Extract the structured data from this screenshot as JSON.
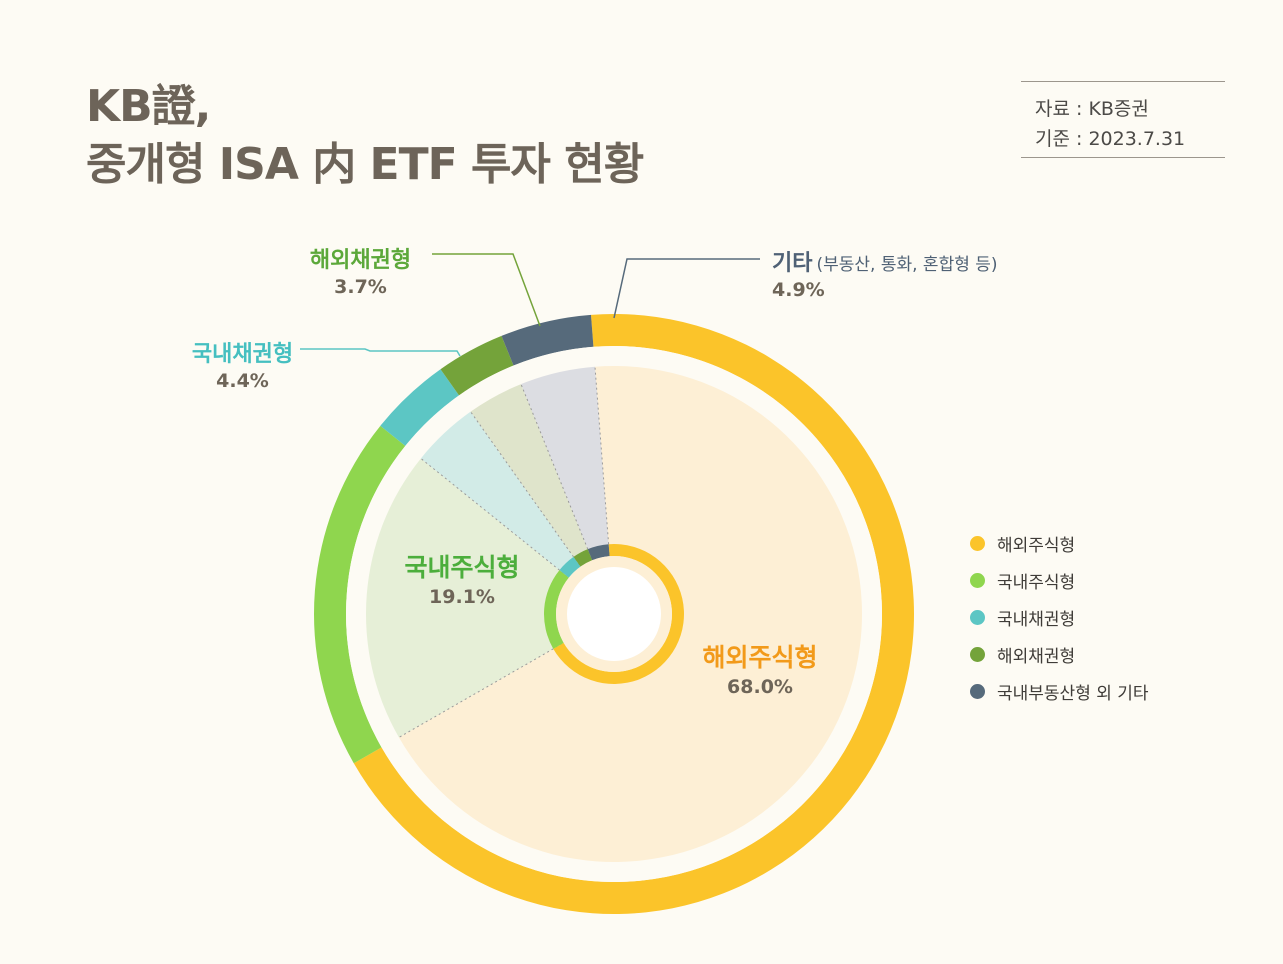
{
  "header": {
    "title_line1": "KB證,",
    "title_line2": "중개형 ISA 内 ETF 투자 현황",
    "source": "자료 : KB증권",
    "base_date": "기준 : 2023.7.31"
  },
  "colors": {
    "overseas_stock": "#fbc42a",
    "domestic_stock": "#8fd64e",
    "domestic_bond": "#5cc6c4",
    "overseas_bond": "#74a33a",
    "others": "#566a7b"
  },
  "chart_data": {
    "type": "pie",
    "style": "donut",
    "title": "중개형 ISA 内 ETF 투자 현황",
    "slices": [
      {
        "label": "해외주식형",
        "value": 68.0,
        "value_label": "68.0%",
        "color": "#fbc42a",
        "inner_color": "#fdefd5",
        "label_color": "#f29a1a"
      },
      {
        "label": "국내주식형",
        "value": 19.1,
        "value_label": "19.1%",
        "color": "#8fd64e",
        "inner_color": "#e6efd7",
        "label_color": "#4cae3c"
      },
      {
        "label": "국내채권형",
        "value": 4.4,
        "value_label": "4.4%",
        "color": "#5cc6c4",
        "inner_color": "#d2ebe7",
        "label_color": "#45bfc0"
      },
      {
        "label": "해외채권형",
        "value": 3.7,
        "value_label": "3.7%",
        "color": "#74a33a",
        "inner_color": "#dfe4cb",
        "label_color": "#5ca83a"
      },
      {
        "label": "기타",
        "note": "(부동산, 통화, 혼합형 등)",
        "value": 4.9,
        "value_label": "4.9%",
        "color": "#566a7b",
        "inner_color": "#dcdde2",
        "label_color": "#4f6175"
      }
    ],
    "legend": {
      "position": "right",
      "items": [
        {
          "label": "해외주식형",
          "color": "#fbc42a"
        },
        {
          "label": "국내주식형",
          "color": "#8fd64e"
        },
        {
          "label": "국내채권형",
          "color": "#5cc6c4"
        },
        {
          "label": "해외채권형",
          "color": "#74a33a"
        },
        {
          "label": "국내부동산형 외 기타",
          "color": "#566a7b"
        }
      ]
    }
  }
}
